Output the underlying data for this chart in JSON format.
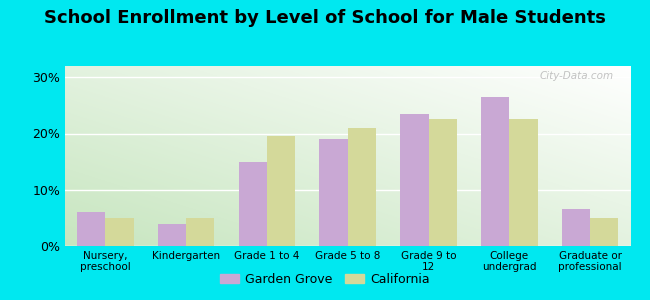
{
  "title": "School Enrollment by Level of School for Male Students",
  "categories": [
    "Nursery,\npreschool",
    "Kindergarten",
    "Grade 1 to 4",
    "Grade 5 to 8",
    "Grade 9 to\n12",
    "College\nundergrad",
    "Graduate or\nprofessional"
  ],
  "garden_grove": [
    6.0,
    4.0,
    15.0,
    19.0,
    23.5,
    26.5,
    6.5
  ],
  "california": [
    5.0,
    5.0,
    19.5,
    21.0,
    22.5,
    22.5,
    5.0
  ],
  "bar_color_gg": "#c9a8d4",
  "bar_color_ca": "#d4d99a",
  "background_outer": "#00e8f0",
  "grid_color": "#ffffff",
  "yticks": [
    0,
    10,
    20,
    30
  ],
  "ylim": [
    0,
    32
  ],
  "legend_labels": [
    "Garden Grove",
    "California"
  ],
  "title_fontsize": 13,
  "watermark": "City-Data.com"
}
